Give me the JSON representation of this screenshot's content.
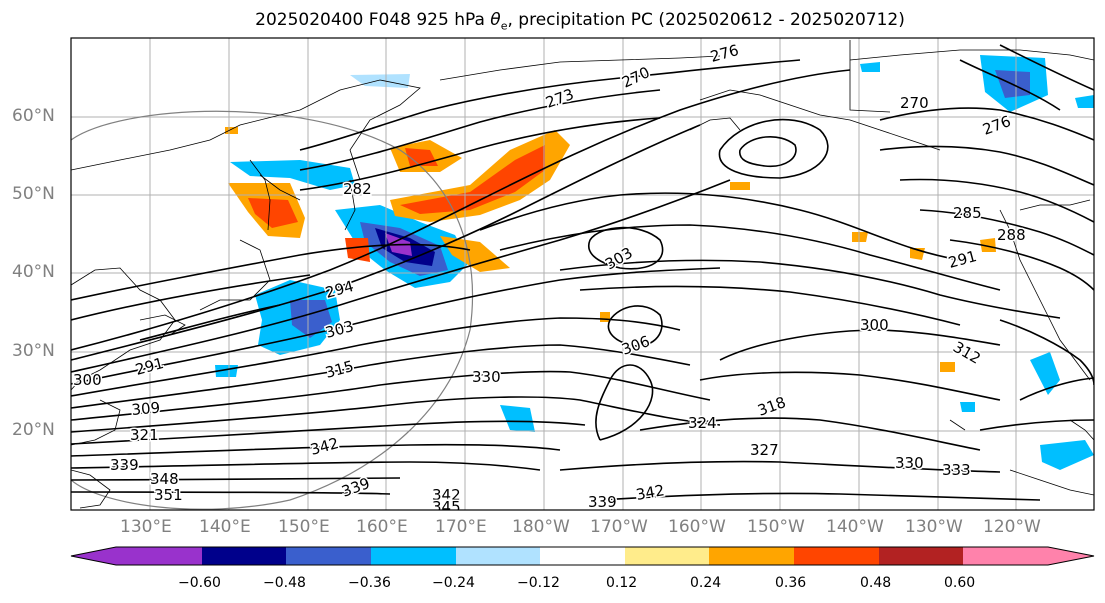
{
  "title": {
    "prefix": "2025020400 F048 925 hPa ",
    "theta": "θ",
    "sub": "e",
    "suffix": ", precipitation PC (2025020612 - 2025020712)"
  },
  "lat_labels": [
    "60°N",
    "50°N",
    "40°N",
    "30°N",
    "20°N"
  ],
  "lon_labels": [
    "130°E",
    "140°E",
    "150°E",
    "160°E",
    "170°E",
    "180°W",
    "170°W",
    "160°W",
    "150°W",
    "140°W",
    "130°W",
    "120°W"
  ],
  "contour_labels": [
    "270",
    "273",
    "276",
    "270",
    "276",
    "282",
    "285",
    "288",
    "291",
    "294",
    "303",
    "303",
    "300",
    "291",
    "300",
    "309",
    "315",
    "321",
    "330",
    "339",
    "348",
    "351",
    "342",
    "339",
    "342",
    "345",
    "339",
    "342",
    "324",
    "318",
    "327",
    "330",
    "333",
    "306",
    "312"
  ],
  "colorbar": {
    "ticks": [
      "−0.60",
      "−0.48",
      "−0.36",
      "−0.24",
      "−0.12",
      "0.12",
      "0.24",
      "0.36",
      "0.48",
      "0.60"
    ],
    "colors": [
      "#9932cc",
      "#00008b",
      "#3a5fcd",
      "#00bfff",
      "#b0e2ff",
      "#ffffff",
      "#ffec8b",
      "#ffa500",
      "#ff4500",
      "#b22222",
      "#ff82ab"
    ]
  },
  "map_colors": {
    "grid": "#b0b0b0",
    "contour": "#000000",
    "coast": "#000000",
    "circle": "#808080"
  }
}
